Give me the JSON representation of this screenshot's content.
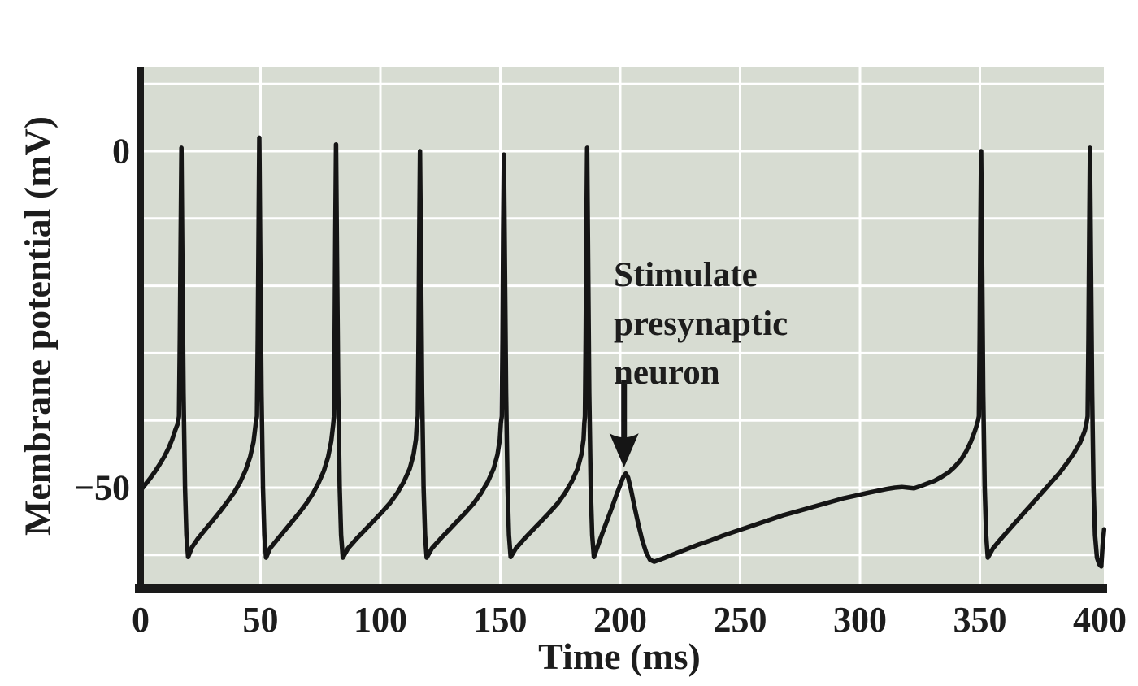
{
  "colors": {
    "page_bg": "#ffffff",
    "plot_bg": "#d7dcd2",
    "grid": "#ffffff",
    "trace": "#151515",
    "axis": "#1a1a1a",
    "text": "#1d1d1d"
  },
  "chart_data": {
    "type": "line",
    "title": "",
    "xlabel": "Time (ms)",
    "ylabel": "Membrane potential (mV)",
    "xlim": [
      0,
      401.8
    ],
    "ylim": [
      -64,
      12.4
    ],
    "grid": true,
    "x_ticks": [
      {
        "label": "0",
        "ms": 0
      },
      {
        "label": "50",
        "ms": 50
      },
      {
        "label": "100",
        "ms": 100
      },
      {
        "label": "150",
        "ms": 150
      },
      {
        "label": "200",
        "ms": 200
      },
      {
        "label": "250",
        "ms": 250
      },
      {
        "label": "300",
        "ms": 300
      },
      {
        "label": "350",
        "ms": 350
      },
      {
        "label": "400",
        "ms": 400
      }
    ],
    "y_ticks": [
      {
        "label": "0",
        "mv": 0
      },
      {
        "label": "−50",
        "mv": -50
      }
    ],
    "grid_x_lines_ms": [
      50,
      100,
      150,
      200,
      250,
      300,
      350
    ],
    "grid_y_lines_mv": [
      10,
      0,
      -10,
      -20,
      -30,
      -40,
      -50,
      -60
    ],
    "annotation": {
      "text": [
        "Stimulate",
        "presynaptic",
        "neuron"
      ],
      "arrow": {
        "t_ms": 201.6,
        "tail_mv": -34,
        "tip_mv": -47
      }
    },
    "spike_peak_times_ms": [
      17,
      49.5,
      81.5,
      116.5,
      151.5,
      186.2,
      350.5,
      395.9
    ],
    "spike_peak_mv": [
      0.5,
      2,
      1,
      0,
      -0.5,
      0.5,
      0,
      0.5
    ],
    "threshold_mv": -40,
    "undershoot_mv": -60.4,
    "stimulus_epsp_peak": {
      "t_ms": 202.3,
      "mv": -47.9
    },
    "series": [
      {
        "name": "membrane-potential",
        "points": [
          [
            0,
            -50.4
          ],
          [
            2,
            -49.5
          ],
          [
            4,
            -48.6
          ],
          [
            6,
            -47.6
          ],
          [
            8,
            -46.5
          ],
          [
            10,
            -45.3
          ],
          [
            11.7,
            -44.1
          ],
          [
            13.2,
            -42.8
          ],
          [
            14.5,
            -41.4
          ],
          [
            15.5,
            -40.5
          ],
          [
            16,
            -39.4
          ],
          [
            16.35,
            -28
          ],
          [
            16.7,
            -12
          ],
          [
            17,
            0.5
          ],
          [
            17.4,
            -16
          ],
          [
            17.9,
            -36
          ],
          [
            18.5,
            -50
          ],
          [
            19.1,
            -57
          ],
          [
            19.8,
            -60.3
          ],
          [
            21.5,
            -58.8
          ],
          [
            24,
            -57.5
          ],
          [
            27,
            -56.2
          ],
          [
            30,
            -54.9
          ],
          [
            33,
            -53.6
          ],
          [
            36,
            -52.2
          ],
          [
            39,
            -50.7
          ],
          [
            41.5,
            -49.2
          ],
          [
            43.8,
            -47.4
          ],
          [
            45.7,
            -45.4
          ],
          [
            47.1,
            -43.2
          ],
          [
            48,
            -40.5
          ],
          [
            48.5,
            -39.4
          ],
          [
            48.85,
            -28
          ],
          [
            49.2,
            -12
          ],
          [
            49.5,
            2
          ],
          [
            49.9,
            -16
          ],
          [
            50.4,
            -36
          ],
          [
            51,
            -50
          ],
          [
            51.6,
            -57
          ],
          [
            52.3,
            -60.4
          ],
          [
            54,
            -59
          ],
          [
            57,
            -57.7
          ],
          [
            60,
            -56.4
          ],
          [
            63,
            -55.1
          ],
          [
            66,
            -53.8
          ],
          [
            69,
            -52.4
          ],
          [
            71.8,
            -50.9
          ],
          [
            74.2,
            -49.3
          ],
          [
            76.4,
            -47.5
          ],
          [
            78.2,
            -45.4
          ],
          [
            79.5,
            -43.1
          ],
          [
            80.3,
            -40.6
          ],
          [
            80.6,
            -39.4
          ],
          [
            80.9,
            -28
          ],
          [
            81.2,
            -12
          ],
          [
            81.5,
            1
          ],
          [
            81.9,
            -16
          ],
          [
            82.4,
            -36
          ],
          [
            83,
            -50
          ],
          [
            83.6,
            -57
          ],
          [
            84.3,
            -60.4
          ],
          [
            86.5,
            -59
          ],
          [
            90,
            -57.6
          ],
          [
            93.5,
            -56.3
          ],
          [
            97,
            -55
          ],
          [
            100.5,
            -53.7
          ],
          [
            104,
            -52.3
          ],
          [
            107,
            -50.8
          ],
          [
            109.8,
            -49.1
          ],
          [
            112.2,
            -47.2
          ],
          [
            113.8,
            -45.1
          ],
          [
            114.8,
            -42.8
          ],
          [
            115.2,
            -40.5
          ],
          [
            115.6,
            -39.4
          ],
          [
            115.9,
            -28
          ],
          [
            116.2,
            -12
          ],
          [
            116.5,
            0
          ],
          [
            116.9,
            -16
          ],
          [
            117.4,
            -36
          ],
          [
            118,
            -50
          ],
          [
            118.6,
            -57
          ],
          [
            119.3,
            -60.4
          ],
          [
            121.5,
            -59
          ],
          [
            125,
            -57.6
          ],
          [
            128.5,
            -56.3
          ],
          [
            132,
            -55
          ],
          [
            135.5,
            -53.7
          ],
          [
            139,
            -52.3
          ],
          [
            142,
            -50.8
          ],
          [
            144.8,
            -49.1
          ],
          [
            147.2,
            -47.2
          ],
          [
            148.8,
            -45.1
          ],
          [
            149.8,
            -42.8
          ],
          [
            150.2,
            -40.5
          ],
          [
            150.6,
            -39.4
          ],
          [
            150.9,
            -28
          ],
          [
            151.2,
            -12
          ],
          [
            151.5,
            -0.5
          ],
          [
            151.9,
            -16
          ],
          [
            152.4,
            -36
          ],
          [
            153,
            -50
          ],
          [
            153.6,
            -57
          ],
          [
            154.3,
            -60.3
          ],
          [
            156.5,
            -59
          ],
          [
            160,
            -57.6
          ],
          [
            163.5,
            -56.3
          ],
          [
            167,
            -55
          ],
          [
            170.5,
            -53.7
          ],
          [
            174,
            -52.3
          ],
          [
            177,
            -50.8
          ],
          [
            179.8,
            -49.1
          ],
          [
            182.2,
            -47.2
          ],
          [
            183.8,
            -45.1
          ],
          [
            184.7,
            -42.8
          ],
          [
            185,
            -40.5
          ],
          [
            185.3,
            -39.4
          ],
          [
            185.6,
            -28
          ],
          [
            185.9,
            -12
          ],
          [
            186.2,
            0.5
          ],
          [
            186.6,
            -16
          ],
          [
            187.1,
            -36
          ],
          [
            187.7,
            -50
          ],
          [
            188.3,
            -57
          ],
          [
            189,
            -60.3
          ],
          [
            190.5,
            -58.8
          ],
          [
            192.5,
            -56.8
          ],
          [
            194.5,
            -54.9
          ],
          [
            196.5,
            -53
          ],
          [
            198.3,
            -51.2
          ],
          [
            200,
            -49.6
          ],
          [
            201.3,
            -48.4
          ],
          [
            202.3,
            -47.9
          ],
          [
            203.3,
            -48.5
          ],
          [
            204.5,
            -50.3
          ],
          [
            206,
            -52.9
          ],
          [
            207.6,
            -55.5
          ],
          [
            209.2,
            -57.8
          ],
          [
            210.8,
            -59.6
          ],
          [
            212.4,
            -60.7
          ],
          [
            214.2,
            -61
          ],
          [
            218,
            -60.5
          ],
          [
            223,
            -59.8
          ],
          [
            228,
            -59.1
          ],
          [
            233,
            -58.4
          ],
          [
            238,
            -57.8
          ],
          [
            243,
            -57.1
          ],
          [
            248,
            -56.5
          ],
          [
            253,
            -55.9
          ],
          [
            258,
            -55.3
          ],
          [
            263,
            -54.7
          ],
          [
            268,
            -54.1
          ],
          [
            273,
            -53.6
          ],
          [
            278,
            -53.1
          ],
          [
            283,
            -52.6
          ],
          [
            288,
            -52.1
          ],
          [
            293,
            -51.6
          ],
          [
            298,
            -51.2
          ],
          [
            303,
            -50.8
          ],
          [
            307,
            -50.5
          ],
          [
            311,
            -50.2
          ],
          [
            314.5,
            -50
          ],
          [
            317.5,
            -49.9
          ],
          [
            320,
            -50
          ],
          [
            322.5,
            -50.1
          ],
          [
            325,
            -49.8
          ],
          [
            328,
            -49.4
          ],
          [
            331,
            -49
          ],
          [
            334,
            -48.4
          ],
          [
            337,
            -47.7
          ],
          [
            339.5,
            -46.9
          ],
          [
            342,
            -45.9
          ],
          [
            344.3,
            -44.6
          ],
          [
            346.3,
            -43.1
          ],
          [
            348,
            -41.5
          ],
          [
            349,
            -40.4
          ],
          [
            349.6,
            -39.4
          ],
          [
            349.9,
            -28
          ],
          [
            350.2,
            -12
          ],
          [
            350.5,
            0
          ],
          [
            350.9,
            -16
          ],
          [
            351.4,
            -36
          ],
          [
            352,
            -50
          ],
          [
            352.6,
            -57
          ],
          [
            353.3,
            -60.4
          ],
          [
            355.5,
            -59
          ],
          [
            358.5,
            -57.7
          ],
          [
            362,
            -56.3
          ],
          [
            365.5,
            -54.9
          ],
          [
            369,
            -53.5
          ],
          [
            372.5,
            -52.1
          ],
          [
            376,
            -50.7
          ],
          [
            379.5,
            -49.3
          ],
          [
            383,
            -47.9
          ],
          [
            386.2,
            -46.4
          ],
          [
            389.2,
            -44.9
          ],
          [
            391.8,
            -43.3
          ],
          [
            393.7,
            -41.6
          ],
          [
            394.4,
            -40.5
          ],
          [
            394.9,
            -39.4
          ],
          [
            395.25,
            -28
          ],
          [
            395.6,
            -12
          ],
          [
            395.9,
            0.5
          ],
          [
            396.3,
            -16
          ],
          [
            396.8,
            -36
          ],
          [
            397.4,
            -50
          ],
          [
            398,
            -57
          ],
          [
            398.8,
            -60.4
          ],
          [
            399.8,
            -61.4
          ],
          [
            400.6,
            -61.7
          ],
          [
            401.2,
            -58.5
          ],
          [
            401.8,
            -56.2
          ]
        ]
      }
    ]
  }
}
